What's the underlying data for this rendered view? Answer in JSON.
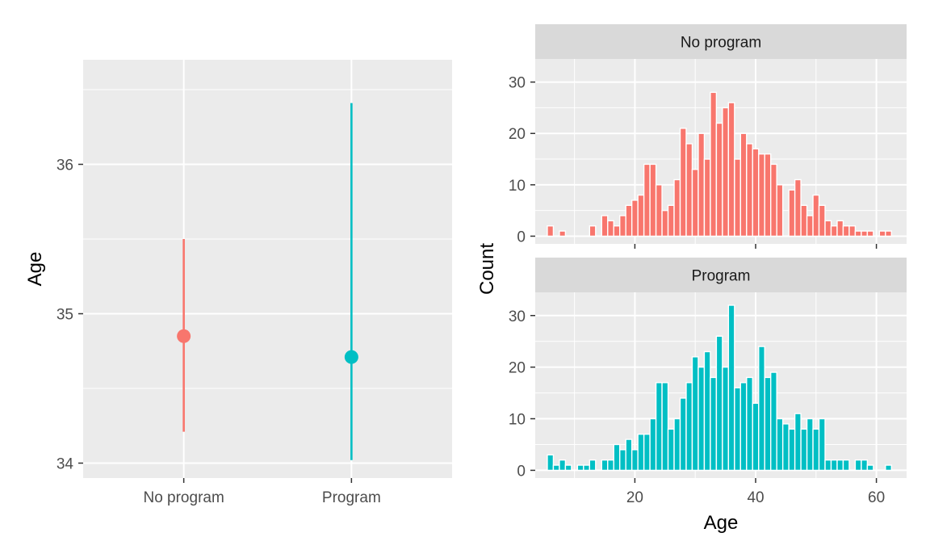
{
  "colors": {
    "no_program": "#F8766D",
    "program": "#00BFC4",
    "panel_bg": "#EBEBEB",
    "grid": "#FFFFFF",
    "strip_bg": "#D9D9D9"
  },
  "chart_data": [
    {
      "type": "pointrange",
      "xlabel": "",
      "ylabel": "Age",
      "categories": [
        "No program",
        "Program"
      ],
      "ylim": [
        33.9,
        36.7
      ],
      "yticks": [
        34,
        35,
        36
      ],
      "ytick_labels": [
        "34",
        "35",
        "36"
      ],
      "grid": true,
      "series": [
        {
          "category": "No program",
          "y": 34.85,
          "ymin": 34.21,
          "ymax": 35.5,
          "color": "#F8766D"
        },
        {
          "category": "Program",
          "y": 34.71,
          "ymin": 34.02,
          "ymax": 36.41,
          "color": "#00BFC4"
        }
      ]
    },
    {
      "type": "bar",
      "xlabel": "Age",
      "ylabel": "Count",
      "xlim": [
        3.5,
        65
      ],
      "ylim": [
        -1.5,
        34.5
      ],
      "xticks": [
        20,
        40,
        60
      ],
      "xtick_labels": [
        "20",
        "40",
        "60"
      ],
      "yticks": [
        0,
        10,
        20,
        30
      ],
      "ytick_labels": [
        "0",
        "10",
        "20",
        "30"
      ],
      "grid": true,
      "facets": [
        {
          "name": "No program",
          "color": "#F8766D",
          "x": [
            6,
            7,
            8,
            9,
            10,
            11,
            12,
            13,
            14,
            15,
            16,
            17,
            18,
            19,
            20,
            21,
            22,
            23,
            24,
            25,
            26,
            27,
            28,
            29,
            30,
            31,
            32,
            33,
            34,
            35,
            36,
            37,
            38,
            39,
            40,
            41,
            42,
            43,
            44,
            45,
            46,
            47,
            48,
            49,
            50,
            51,
            52,
            53,
            54,
            55,
            56,
            57,
            58,
            59,
            60,
            61,
            62
          ],
          "values": [
            2,
            0,
            1,
            0,
            0,
            0,
            0,
            2,
            0,
            4,
            3,
            2,
            4,
            6,
            7,
            8,
            14,
            14,
            10,
            5,
            6,
            11,
            21,
            18,
            13,
            20,
            15,
            28,
            22,
            25,
            26,
            15,
            20,
            18,
            17,
            16,
            16,
            14,
            10,
            0,
            9,
            11,
            6,
            4,
            8,
            6,
            3,
            2,
            3,
            2,
            2,
            1,
            1,
            1,
            0,
            1,
            1
          ]
        },
        {
          "name": "Program",
          "color": "#00BFC4",
          "x": [
            6,
            7,
            8,
            9,
            10,
            11,
            12,
            13,
            14,
            15,
            16,
            17,
            18,
            19,
            20,
            21,
            22,
            23,
            24,
            25,
            26,
            27,
            28,
            29,
            30,
            31,
            32,
            33,
            34,
            35,
            36,
            37,
            38,
            39,
            40,
            41,
            42,
            43,
            44,
            45,
            46,
            47,
            48,
            49,
            50,
            51,
            52,
            53,
            54,
            55,
            56,
            57,
            58,
            59,
            60,
            61,
            62
          ],
          "values": [
            3,
            1,
            2,
            1,
            0,
            1,
            1,
            2,
            0,
            2,
            2,
            5,
            4,
            6,
            4,
            7,
            7,
            10,
            17,
            17,
            8,
            10,
            14,
            17,
            22,
            20,
            23,
            18,
            26,
            20,
            32,
            16,
            17,
            18,
            13,
            24,
            18,
            19,
            10,
            9,
            8,
            11,
            8,
            10,
            8,
            10,
            2,
            2,
            2,
            2,
            0,
            2,
            2,
            1,
            0,
            0,
            1
          ]
        }
      ]
    }
  ]
}
